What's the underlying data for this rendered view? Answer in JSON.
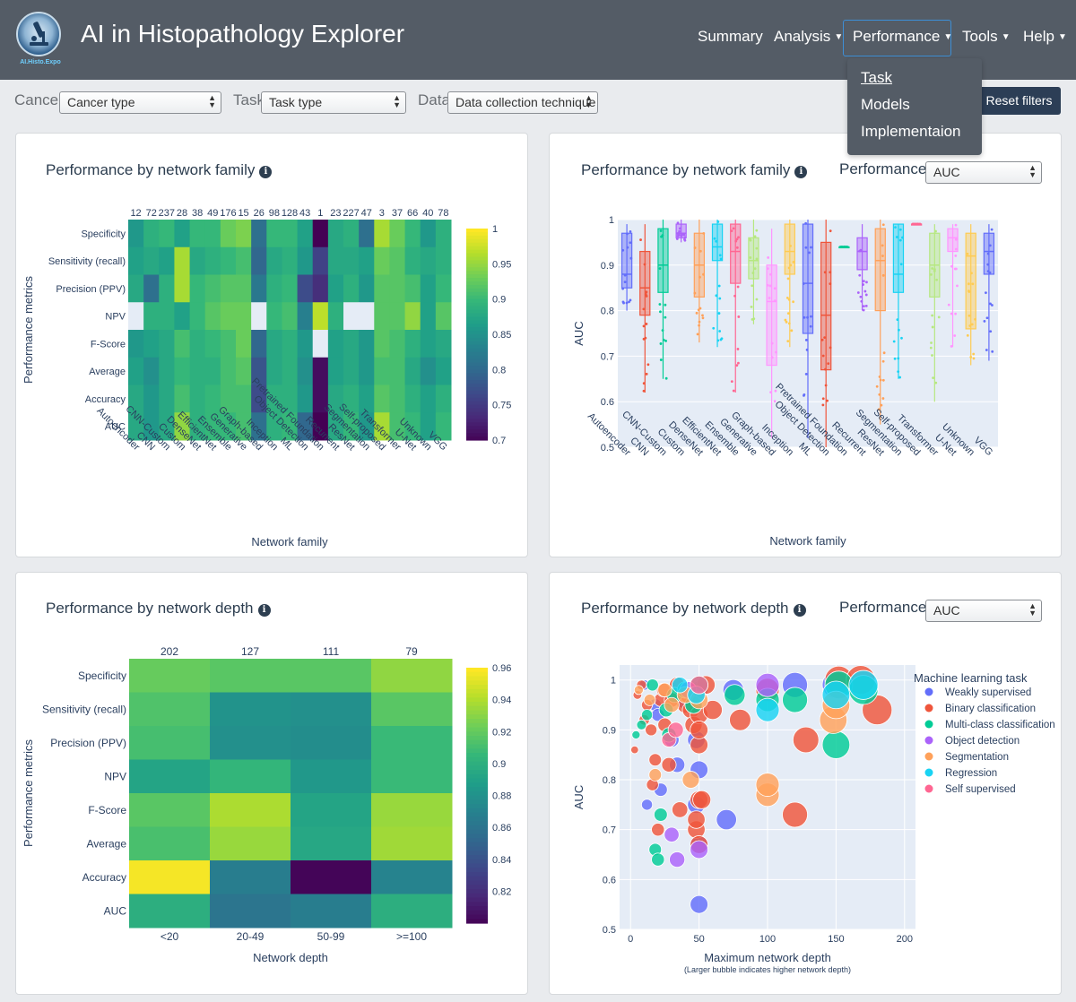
{
  "app": {
    "title": "AI in Histopathology Explorer",
    "logo_caption": "AI.Histo.Expo",
    "logo_icon": "microscope-logo-icon"
  },
  "nav": {
    "items": [
      "Summary",
      "Analysis",
      "Performance",
      "Tools",
      "Help"
    ],
    "dropdown_items": [
      "Task",
      "Models",
      "Implementaion"
    ]
  },
  "filters": {
    "cancer_label": "Cancer",
    "cancer_value": "Cancer type",
    "task_label": "Task",
    "task_value": "Task type",
    "data_label": "Data",
    "data_value": "Data collection technique",
    "reset_label": "Reset filters"
  },
  "colors": {
    "navbar": "#545c66",
    "accent": "#2c3e56",
    "plot_bg": "#e5ecf6"
  },
  "panels": {
    "family_heatmap_title": "Performance by network family",
    "family_box_title": "Performance by network family",
    "depth_heatmap_title": "Performance by network depth",
    "depth_scatter_title": "Performance by network depth",
    "performance_label": "Performance",
    "performance_value": "AUC"
  },
  "chart_data": [
    {
      "id": "family_heatmap",
      "type": "heatmap",
      "xlabel": "Network family",
      "ylabel": "Performance metrics",
      "categories": [
        "Autoencoder",
        "CNN",
        "CNN-Custom",
        "Custom",
        "DenseNet",
        "EfficientNet",
        "Ensemble",
        "Generative",
        "Graph-based",
        "Inception",
        "ML",
        "Object Detection",
        "Pretrained Foundation",
        "Recurrent",
        "ResNet",
        "Segmentation",
        "Self-proposed",
        "Transformer",
        "U-Net",
        "Unknown",
        "VGG"
      ],
      "counts": [
        "12",
        "72",
        "237",
        "28",
        "38",
        "49",
        "176",
        "15",
        "26",
        "98",
        "128",
        "43",
        "1",
        "23",
        "227",
        "47",
        "3",
        "37",
        "66",
        "40",
        "78"
      ],
      "rows": [
        "Specificity",
        "Sensitivity (recall)",
        "Precision (PPV)",
        "NPV",
        "F-Score",
        "Average",
        "Accuracy",
        "AUC"
      ],
      "values": [
        [
          0.86,
          0.89,
          0.9,
          0.87,
          0.9,
          0.9,
          0.93,
          0.94,
          0.81,
          0.9,
          0.9,
          0.87,
          0.7,
          0.88,
          0.89,
          0.81,
          0.96,
          0.93,
          0.9,
          0.86,
          0.89
        ],
        [
          0.87,
          0.88,
          0.87,
          0.96,
          0.88,
          0.89,
          0.9,
          0.91,
          0.8,
          0.88,
          0.89,
          0.86,
          0.76,
          0.88,
          0.88,
          0.87,
          0.93,
          0.92,
          0.89,
          0.88,
          0.89
        ],
        [
          0.88,
          0.81,
          0.89,
          0.96,
          0.9,
          0.91,
          0.92,
          0.92,
          0.82,
          0.89,
          0.9,
          0.77,
          0.74,
          0.87,
          0.89,
          0.86,
          0.92,
          0.92,
          0.91,
          0.87,
          0.9
        ],
        [
          null,
          0.89,
          0.89,
          0.87,
          0.9,
          0.92,
          0.93,
          0.93,
          null,
          0.9,
          0.91,
          0.83,
          0.97,
          0.89,
          null,
          null,
          0.92,
          0.92,
          0.95,
          0.87,
          0.92
        ],
        [
          0.86,
          0.87,
          0.88,
          0.91,
          0.89,
          0.9,
          0.91,
          0.93,
          0.8,
          0.88,
          0.89,
          0.86,
          null,
          0.87,
          0.88,
          0.86,
          0.92,
          0.91,
          0.89,
          0.87,
          0.88
        ],
        [
          0.87,
          0.85,
          0.88,
          0.9,
          0.89,
          0.89,
          0.91,
          0.92,
          0.78,
          0.88,
          0.89,
          0.85,
          0.71,
          0.87,
          0.88,
          0.86,
          0.91,
          0.91,
          0.88,
          0.85,
          0.87
        ],
        [
          0.88,
          0.86,
          0.88,
          0.91,
          0.89,
          0.9,
          0.91,
          0.91,
          0.77,
          0.89,
          0.89,
          0.86,
          0.71,
          0.88,
          0.89,
          0.87,
          0.92,
          0.91,
          0.89,
          0.87,
          0.89
        ],
        [
          0.88,
          0.86,
          0.88,
          0.95,
          0.89,
          0.9,
          0.9,
          0.91,
          0.81,
          0.89,
          0.9,
          0.8,
          0.7,
          0.88,
          0.9,
          0.86,
          0.96,
          0.91,
          0.9,
          0.87,
          0.9
        ]
      ],
      "colorbar_ticks": [
        "1",
        "0.95",
        "0.9",
        "0.85",
        "0.8",
        "0.75",
        "0.7"
      ],
      "zlim": [
        0.7,
        1.0
      ]
    },
    {
      "id": "family_box",
      "type": "box",
      "xlabel": "Network family",
      "ylabel": "AUC",
      "ylim": [
        0.5,
        1.0
      ],
      "yticks": [
        "0.5",
        "0.6",
        "0.7",
        "0.8",
        "0.9",
        "1"
      ],
      "categories": [
        "Autoencoder",
        "CNN",
        "CNN-Custom",
        "Custom",
        "DenseNet",
        "EfficientNet",
        "Ensemble",
        "Generative",
        "Graph-based",
        "Inception",
        "ML",
        "Object Detection",
        "Pretrained Foundation",
        "Recurrent",
        "ResNet",
        "Segmentation",
        "Self-proposed",
        "Transformer",
        "U-Net",
        "Unknown",
        "VGG"
      ],
      "series": [
        {
          "name": "Autoencoder",
          "color": "#636efa",
          "q1": 0.85,
          "median": 0.88,
          "q3": 0.97,
          "min": 0.8,
          "max": 0.99
        },
        {
          "name": "CNN",
          "color": "#ef553b",
          "q1": 0.79,
          "median": 0.85,
          "q3": 0.93,
          "min": 0.62,
          "max": 0.99
        },
        {
          "name": "CNN-Custom",
          "color": "#00cc96",
          "q1": 0.84,
          "median": 0.9,
          "q3": 0.98,
          "min": 0.65,
          "max": 1.0
        },
        {
          "name": "Custom",
          "color": "#ab63fa",
          "q1": 0.96,
          "median": 0.97,
          "q3": 0.99,
          "min": 0.95,
          "max": 1.0
        },
        {
          "name": "DenseNet",
          "color": "#ffa15a",
          "q1": 0.83,
          "median": 0.9,
          "q3": 0.97,
          "min": 0.73,
          "max": 1.0
        },
        {
          "name": "EfficientNet",
          "color": "#19d3f3",
          "q1": 0.91,
          "median": 0.94,
          "q3": 0.99,
          "min": 0.72,
          "max": 1.0
        },
        {
          "name": "Ensemble",
          "color": "#ff6692",
          "q1": 0.86,
          "median": 0.93,
          "q3": 0.99,
          "min": 0.62,
          "max": 1.0
        },
        {
          "name": "Generative",
          "color": "#b6e880",
          "q1": 0.87,
          "median": 0.91,
          "q3": 0.96,
          "min": 0.77,
          "max": 1.0
        },
        {
          "name": "Graph-based",
          "color": "#ff97ff",
          "q1": 0.68,
          "median": 0.82,
          "q3": 0.9,
          "min": 0.52,
          "max": 0.98
        },
        {
          "name": "Inception",
          "color": "#fecb52",
          "q1": 0.88,
          "median": 0.93,
          "q3": 0.99,
          "min": 0.72,
          "max": 1.0
        },
        {
          "name": "ML",
          "color": "#636efa",
          "q1": 0.75,
          "median": 0.86,
          "q3": 0.99,
          "min": 0.52,
          "max": 1.0
        },
        {
          "name": "Object Detection",
          "color": "#ef553b",
          "q1": 0.67,
          "median": 0.79,
          "q3": 0.95,
          "min": 0.5,
          "max": 1.0
        },
        {
          "name": "Pretrained Foundation",
          "color": "#00cc96",
          "q1": 0.94,
          "median": 0.94,
          "q3": 0.94,
          "min": 0.94,
          "max": 0.94
        },
        {
          "name": "Recurrent",
          "color": "#ab63fa",
          "q1": 0.89,
          "median": 0.93,
          "q3": 0.96,
          "min": 0.8,
          "max": 0.99
        },
        {
          "name": "ResNet",
          "color": "#ffa15a",
          "q1": 0.8,
          "median": 0.91,
          "q3": 0.98,
          "min": 0.55,
          "max": 1.0
        },
        {
          "name": "Segmentation",
          "color": "#19d3f3",
          "q1": 0.84,
          "median": 0.88,
          "q3": 0.99,
          "min": 0.65,
          "max": 0.99
        },
        {
          "name": "Self-proposed",
          "color": "#ff6692",
          "q1": 0.99,
          "median": 0.99,
          "q3": 0.99,
          "min": 0.99,
          "max": 0.99
        },
        {
          "name": "Transformer",
          "color": "#b6e880",
          "q1": 0.83,
          "median": 0.9,
          "q3": 0.97,
          "min": 0.6,
          "max": 0.99
        },
        {
          "name": "U-Net",
          "color": "#ff97ff",
          "q1": 0.93,
          "median": 0.96,
          "q3": 0.98,
          "min": 0.72,
          "max": 0.99
        },
        {
          "name": "Unknown",
          "color": "#fecb52",
          "q1": 0.76,
          "median": 0.92,
          "q3": 0.97,
          "min": 0.68,
          "max": 0.99
        },
        {
          "name": "VGG",
          "color": "#636efa",
          "q1": 0.88,
          "median": 0.93,
          "q3": 0.97,
          "min": 0.69,
          "max": 0.99
        }
      ]
    },
    {
      "id": "depth_heatmap",
      "type": "heatmap",
      "xlabel": "Network depth",
      "ylabel": "Performance metrics",
      "categories": [
        "<20",
        "20-49",
        "50-99",
        ">=100"
      ],
      "counts": [
        "202",
        "127",
        "111",
        "79"
      ],
      "rows": [
        "Specificity",
        "Sensitivity (recall)",
        "Precision (PPV)",
        "NPV",
        "F-Score",
        "Average",
        "Accuracy",
        "AUC"
      ],
      "values": [
        [
          0.922,
          0.918,
          0.918,
          0.933
        ],
        [
          0.915,
          0.882,
          0.88,
          0.918
        ],
        [
          0.912,
          0.88,
          0.878,
          0.908
        ],
        [
          0.893,
          0.905,
          0.885,
          0.908
        ],
        [
          0.918,
          0.94,
          0.893,
          0.935
        ],
        [
          0.913,
          0.935,
          0.895,
          0.937
        ],
        [
          0.958,
          0.868,
          0.802,
          0.872
        ],
        [
          0.9,
          0.862,
          0.868,
          0.9
        ]
      ],
      "colorbar_ticks": [
        "0.96",
        "0.94",
        "0.92",
        "0.9",
        "0.88",
        "0.86",
        "0.84",
        "0.82"
      ],
      "zlim": [
        0.8,
        0.96
      ]
    },
    {
      "id": "depth_scatter",
      "type": "scatter",
      "xlabel": "Maximum network depth",
      "xlabel_note": "(Larger bubble indicates higher network depth)",
      "ylabel": "AUC",
      "xlim": [
        -8,
        208
      ],
      "ylim": [
        0.5,
        1.03
      ],
      "xticks": [
        "0",
        "50",
        "100",
        "150",
        "200"
      ],
      "yticks": [
        "0.5",
        "0.6",
        "0.7",
        "0.8",
        "0.9",
        "1"
      ],
      "legend_title": "Machine learning task",
      "series": [
        {
          "name": "Weakly supervised",
          "color": "#636efa",
          "points": [
            [
              10,
              0.99
            ],
            [
              12,
              0.75
            ],
            [
              18,
              0.95
            ],
            [
              20,
              0.93
            ],
            [
              22,
              0.78
            ],
            [
              30,
              0.88
            ],
            [
              34,
              0.83
            ],
            [
              38,
              0.96
            ],
            [
              48,
              0.88
            ],
            [
              48,
              0.75
            ],
            [
              50,
              0.55
            ],
            [
              50,
              0.67
            ],
            [
              50,
              0.82
            ],
            [
              50,
              0.98
            ],
            [
              70,
              0.72
            ],
            [
              75,
              0.98
            ],
            [
              120,
              0.99
            ],
            [
              150,
              0.99
            ]
          ]
        },
        {
          "name": "Binary classification",
          "color": "#ef553b",
          "points": [
            [
              3,
              0.86
            ],
            [
              5,
              0.97
            ],
            [
              8,
              0.99
            ],
            [
              10,
              0.92
            ],
            [
              12,
              0.95
            ],
            [
              15,
              0.9
            ],
            [
              16,
              0.79
            ],
            [
              18,
              0.84
            ],
            [
              20,
              0.7
            ],
            [
              22,
              0.96
            ],
            [
              24,
              0.98
            ],
            [
              25,
              0.91
            ],
            [
              28,
              0.83
            ],
            [
              30,
              0.96
            ],
            [
              34,
              0.99
            ],
            [
              36,
              0.74
            ],
            [
              40,
              0.95
            ],
            [
              42,
              0.97
            ],
            [
              44,
              0.94
            ],
            [
              46,
              0.91
            ],
            [
              48,
              0.7
            ],
            [
              48,
              0.72
            ],
            [
              50,
              0.87
            ],
            [
              50,
              0.93
            ],
            [
              50,
              0.9
            ],
            [
              50,
              0.76
            ],
            [
              50,
              0.67
            ],
            [
              52,
              0.76
            ],
            [
              55,
              0.99
            ],
            [
              60,
              0.94
            ],
            [
              80,
              0.92
            ],
            [
              100,
              0.98
            ],
            [
              120,
              0.73
            ],
            [
              128,
              0.88
            ],
            [
              152,
              1.0
            ],
            [
              168,
              1.0
            ],
            [
              180,
              0.94
            ]
          ]
        },
        {
          "name": "Multi-class classification",
          "color": "#00cc96",
          "points": [
            [
              4,
              0.89
            ],
            [
              8,
              0.91
            ],
            [
              12,
              0.93
            ],
            [
              16,
              0.99
            ],
            [
              18,
              0.66
            ],
            [
              20,
              0.64
            ],
            [
              22,
              0.73
            ],
            [
              26,
              0.94
            ],
            [
              28,
              0.89
            ],
            [
              32,
              0.97
            ],
            [
              40,
              0.98
            ],
            [
              46,
              0.95
            ],
            [
              50,
              0.99
            ],
            [
              76,
              0.97
            ],
            [
              100,
              0.96
            ],
            [
              120,
              0.96
            ],
            [
              150,
              0.87
            ],
            [
              152,
              0.99
            ],
            [
              170,
              0.98
            ]
          ]
        },
        {
          "name": "Object detection",
          "color": "#ab63fa",
          "points": [
            [
              30,
              0.69
            ],
            [
              34,
              0.64
            ],
            [
              42,
              0.98
            ],
            [
              50,
              0.66
            ],
            [
              100,
              0.99
            ]
          ]
        },
        {
          "name": "Segmentation",
          "color": "#ffa15a",
          "points": [
            [
              6,
              0.98
            ],
            [
              14,
              0.96
            ],
            [
              18,
              0.81
            ],
            [
              25,
              0.98
            ],
            [
              30,
              0.95
            ],
            [
              40,
              0.97
            ],
            [
              44,
              0.8
            ],
            [
              50,
              0.96
            ],
            [
              100,
              0.77
            ],
            [
              100,
              0.79
            ],
            [
              148,
              0.92
            ],
            [
              150,
              0.95
            ]
          ]
        },
        {
          "name": "Regression",
          "color": "#19d3f3",
          "points": [
            [
              36,
              0.99
            ],
            [
              48,
              0.97
            ],
            [
              100,
              0.94
            ],
            [
              150,
              0.97
            ],
            [
              170,
              0.99
            ]
          ]
        },
        {
          "name": "Self supervised",
          "color": "#ff6692",
          "points": [
            [
              28,
              0.88
            ],
            [
              33,
              0.9
            ],
            [
              50,
              0.99
            ]
          ]
        }
      ]
    }
  ]
}
